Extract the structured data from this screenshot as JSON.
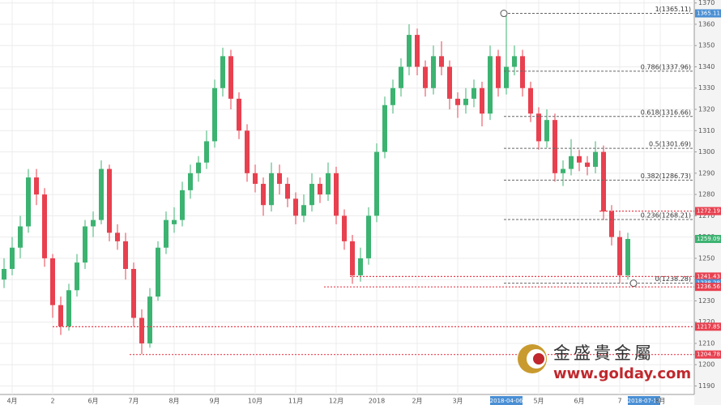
{
  "chart_data": {
    "type": "candlestick",
    "categories": [
      null,
      "4月",
      null,
      null,
      null,
      null,
      "2",
      null,
      null,
      null,
      null,
      "6月",
      null,
      null,
      null,
      null,
      "7月",
      null,
      null,
      null,
      null,
      "8月",
      null,
      null,
      null,
      null,
      "9月",
      null,
      null,
      null,
      null,
      "10月",
      null,
      null,
      null,
      null,
      "11月",
      null,
      null,
      null,
      null,
      "12月",
      null,
      null,
      null,
      null,
      "2018",
      null,
      null,
      null,
      null,
      "2月",
      null,
      null,
      null,
      null,
      "3月",
      null,
      null,
      null,
      null,
      null,
      {
        "label": "2018-04-06",
        "highlight": true
      },
      null,
      null,
      null,
      "5月",
      null,
      null,
      null,
      null,
      "6月",
      null,
      null,
      null,
      null,
      "7",
      null,
      null,
      {
        "label": "2018-07-12",
        "highlight": true
      },
      null,
      "8月"
    ],
    "candles": [
      [
        1240,
        1250,
        1236,
        1245
      ],
      [
        1245,
        1260,
        1242,
        1255
      ],
      [
        1255,
        1270,
        1250,
        1265
      ],
      [
        1265,
        1292,
        1262,
        1288
      ],
      [
        1288,
        1292,
        1275,
        1280
      ],
      [
        1280,
        1283,
        1246,
        1250
      ],
      [
        1250,
        1252,
        1222,
        1228
      ],
      [
        1228,
        1232,
        1214,
        1218
      ],
      [
        1218,
        1238,
        1216,
        1235
      ],
      [
        1235,
        1252,
        1232,
        1248
      ],
      [
        1248,
        1268,
        1245,
        1265
      ],
      [
        1265,
        1272,
        1260,
        1268
      ],
      [
        1268,
        1296,
        1266,
        1292
      ],
      [
        1292,
        1294,
        1258,
        1262
      ],
      [
        1262,
        1266,
        1254,
        1258
      ],
      [
        1258,
        1262,
        1240,
        1245
      ],
      [
        1245,
        1248,
        1218,
        1222
      ],
      [
        1222,
        1226,
        1205,
        1210
      ],
      [
        1210,
        1236,
        1208,
        1232
      ],
      [
        1232,
        1258,
        1230,
        1255
      ],
      [
        1255,
        1272,
        1252,
        1268
      ],
      [
        1266,
        1274,
        1262,
        1268
      ],
      [
        1268,
        1286,
        1265,
        1282
      ],
      [
        1282,
        1294,
        1278,
        1290
      ],
      [
        1290,
        1298,
        1286,
        1295
      ],
      [
        1295,
        1310,
        1292,
        1305
      ],
      [
        1305,
        1334,
        1302,
        1330
      ],
      [
        1330,
        1349,
        1326,
        1345
      ],
      [
        1345,
        1348,
        1320,
        1325
      ],
      [
        1325,
        1328,
        1306,
        1310
      ],
      [
        1310,
        1313,
        1286,
        1290
      ],
      [
        1290,
        1294,
        1281,
        1285
      ],
      [
        1285,
        1288,
        1270,
        1275
      ],
      [
        1275,
        1295,
        1272,
        1290
      ],
      [
        1290,
        1294,
        1280,
        1285
      ],
      [
        1285,
        1288,
        1274,
        1278
      ],
      [
        1278,
        1281,
        1266,
        1270
      ],
      [
        1270,
        1280,
        1267,
        1275
      ],
      [
        1275,
        1290,
        1272,
        1285
      ],
      [
        1285,
        1288,
        1276,
        1280
      ],
      [
        1280,
        1295,
        1277,
        1290
      ],
      [
        1290,
        1293,
        1266,
        1270
      ],
      [
        1270,
        1273,
        1254,
        1258
      ],
      [
        1258,
        1261,
        1238,
        1242
      ],
      [
        1242,
        1255,
        1239,
        1250
      ],
      [
        1250,
        1274,
        1247,
        1270
      ],
      [
        1270,
        1304,
        1267,
        1300
      ],
      [
        1300,
        1326,
        1297,
        1322
      ],
      [
        1322,
        1334,
        1318,
        1330
      ],
      [
        1330,
        1344,
        1326,
        1340
      ],
      [
        1340,
        1360,
        1336,
        1355
      ],
      [
        1355,
        1358,
        1336,
        1340
      ],
      [
        1340,
        1343,
        1326,
        1330
      ],
      [
        1330,
        1350,
        1327,
        1345
      ],
      [
        1345,
        1352,
        1336,
        1340
      ],
      [
        1340,
        1343,
        1320,
        1325
      ],
      [
        1325,
        1328,
        1316,
        1322
      ],
      [
        1322,
        1330,
        1318,
        1325
      ],
      [
        1325,
        1334,
        1321,
        1330
      ],
      [
        1330,
        1333,
        1312,
        1318
      ],
      [
        1318,
        1350,
        1315,
        1345
      ],
      [
        1345,
        1348,
        1326,
        1330
      ],
      [
        1330,
        1365.11,
        1327,
        1340
      ],
      [
        1340,
        1350,
        1336,
        1345
      ],
      [
        1345,
        1348,
        1326,
        1330
      ],
      [
        1330,
        1333,
        1314,
        1318
      ],
      [
        1318,
        1321,
        1301,
        1305
      ],
      [
        1305,
        1320,
        1302,
        1315
      ],
      [
        1315,
        1318,
        1286,
        1290
      ],
      [
        1290,
        1296,
        1284,
        1292
      ],
      [
        1292,
        1306,
        1289,
        1298
      ],
      [
        1298,
        1301,
        1291,
        1295
      ],
      [
        1295,
        1298,
        1289,
        1293
      ],
      [
        1293,
        1305,
        1290,
        1300
      ],
      [
        1300,
        1303,
        1268,
        1272
      ],
      [
        1272,
        1275,
        1256,
        1260
      ],
      [
        1260,
        1263,
        1238.28,
        1242
      ],
      [
        1242,
        1262,
        1240,
        1259.09
      ],
      null,
      null,
      null,
      null
    ],
    "up_color": "#3cb371",
    "down_color": "#e8404f",
    "ylim": [
      1186,
      1371.4
    ],
    "yticks": [
      1190,
      1200,
      1210,
      1220,
      1230,
      1240,
      1250,
      1260,
      1270,
      1280,
      1290,
      1300,
      1310,
      1320,
      1330,
      1340,
      1350,
      1360,
      1370
    ],
    "grid": true,
    "fib_levels": [
      {
        "label": "1(1365.11)",
        "value": 1365.11
      },
      {
        "label": "0.786(1337.96)",
        "value": 1337.96
      },
      {
        "label": "0.618(1316.66)",
        "value": 1316.66
      },
      {
        "label": "0.5(1301.69)",
        "value": 1301.69
      },
      {
        "label": "0.382(1286.73)",
        "value": 1286.73
      },
      {
        "label": "0.236(1268.21)",
        "value": 1268.21
      },
      {
        "label": "0(1238.28)",
        "value": 1238.28
      }
    ],
    "price_tags": [
      {
        "value": 1365.11,
        "color": "#4a8fd4"
      },
      {
        "value": 1272.19,
        "color": "#e8404f",
        "line": true
      },
      {
        "value": 1259.09,
        "color": "#3cb371"
      },
      {
        "value": 1241.43,
        "color": "#e8404f",
        "line": true
      },
      {
        "value": 1238.28,
        "color": "#4a8fd4"
      },
      {
        "value": 1236.56,
        "color": "#e8404f",
        "line": true
      },
      {
        "value": 1217.85,
        "color": "#e8404f",
        "line": true
      },
      {
        "value": 1204.78,
        "color": "#e8404f",
        "line": true
      }
    ],
    "watermark": {
      "name": "金盛貴金屬",
      "url": "www.golday.com"
    }
  }
}
